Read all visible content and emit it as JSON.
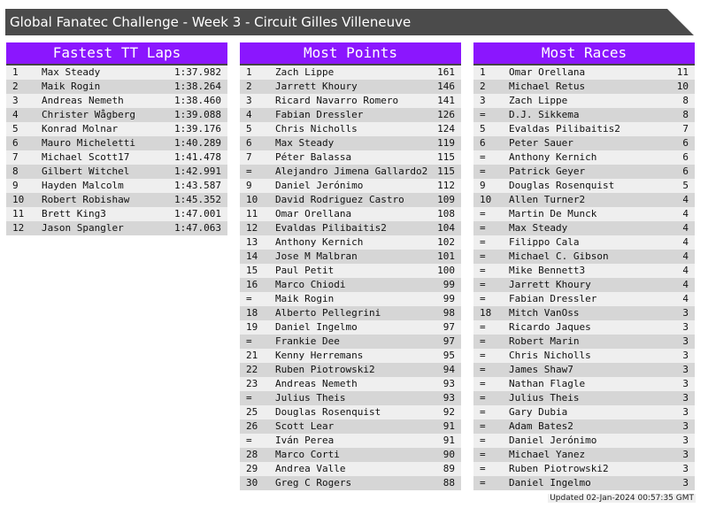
{
  "title": "Global Fanatec Challenge - Week 3 - Circuit Gilles Villeneuve",
  "colors": {
    "header": "#8b16fe",
    "titlebar": "#4b4b4b",
    "row_light": "#efefef",
    "row_dark": "#d6d6d6"
  },
  "panels": [
    {
      "title": "Fastest TT Laps",
      "rows": [
        [
          "1",
          "Max Steady",
          "1:37.982"
        ],
        [
          "2",
          "Maik Rogin",
          "1:38.264"
        ],
        [
          "3",
          "Andreas Nemeth",
          "1:38.460"
        ],
        [
          "4",
          "Christer Wågberg",
          "1:39.088"
        ],
        [
          "5",
          "Konrad Molnar",
          "1:39.176"
        ],
        [
          "6",
          "Mauro Micheletti",
          "1:40.289"
        ],
        [
          "7",
          "Michael Scott17",
          "1:41.478"
        ],
        [
          "8",
          "Gilbert Witchel",
          "1:42.991"
        ],
        [
          "9",
          "Hayden Malcolm",
          "1:43.587"
        ],
        [
          "10",
          "Robert Robishaw",
          "1:45.352"
        ],
        [
          "11",
          "Brett King3",
          "1:47.001"
        ],
        [
          "12",
          "Jason Spangler",
          "1:47.063"
        ]
      ]
    },
    {
      "title": "Most Points",
      "rows": [
        [
          "1",
          "Zach Lippe",
          "161"
        ],
        [
          "2",
          "Jarrett Khoury",
          "146"
        ],
        [
          "3",
          "Ricard Navarro Romero",
          "141"
        ],
        [
          "4",
          "Fabian Dressler",
          "126"
        ],
        [
          "5",
          "Chris Nicholls",
          "124"
        ],
        [
          "6",
          "Max Steady",
          "119"
        ],
        [
          "7",
          "Péter Balassa",
          "115"
        ],
        [
          "=",
          "Alejandro Jimena Gallardo2",
          "115"
        ],
        [
          "9",
          "Daniel Jerónimo",
          "112"
        ],
        [
          "10",
          "David Rodriguez Castro",
          "109"
        ],
        [
          "11",
          "Omar Orellana",
          "108"
        ],
        [
          "12",
          "Evaldas Pilibaitis2",
          "104"
        ],
        [
          "13",
          "Anthony Kernich",
          "102"
        ],
        [
          "14",
          "Jose M Malbran",
          "101"
        ],
        [
          "15",
          "Paul Petit",
          "100"
        ],
        [
          "16",
          "Marco Chiodi",
          "99"
        ],
        [
          "=",
          "Maik Rogin",
          "99"
        ],
        [
          "18",
          "Alberto Pellegrini",
          "98"
        ],
        [
          "19",
          "Daniel Ingelmo",
          "97"
        ],
        [
          "=",
          "Frankie Dee",
          "97"
        ],
        [
          "21",
          "Kenny Herremans",
          "95"
        ],
        [
          "22",
          "Ruben Piotrowski2",
          "94"
        ],
        [
          "23",
          "Andreas Nemeth",
          "93"
        ],
        [
          "=",
          "Julius Theis",
          "93"
        ],
        [
          "25",
          "Douglas Rosenquist",
          "92"
        ],
        [
          "26",
          "Scott Lear",
          "91"
        ],
        [
          "=",
          "Iván Perea",
          "91"
        ],
        [
          "28",
          "Marco Corti",
          "90"
        ],
        [
          "29",
          "Andrea Valle",
          "89"
        ],
        [
          "30",
          "Greg C Rogers",
          "88"
        ]
      ]
    },
    {
      "title": "Most Races",
      "rows": [
        [
          "1",
          "Omar Orellana",
          "11"
        ],
        [
          "2",
          "Michael Retus",
          "10"
        ],
        [
          "3",
          "Zach Lippe",
          "8"
        ],
        [
          "=",
          "D.J. Sikkema",
          "8"
        ],
        [
          "5",
          "Evaldas Pilibaitis2",
          "7"
        ],
        [
          "6",
          "Peter Sauer",
          "6"
        ],
        [
          "=",
          "Anthony Kernich",
          "6"
        ],
        [
          "=",
          "Patrick Geyer",
          "6"
        ],
        [
          "9",
          "Douglas Rosenquist",
          "5"
        ],
        [
          "10",
          "Allen Turner2",
          "4"
        ],
        [
          "=",
          "Martin De Munck",
          "4"
        ],
        [
          "=",
          "Max Steady",
          "4"
        ],
        [
          "=",
          "Filippo Cala",
          "4"
        ],
        [
          "=",
          "Michael C. Gibson",
          "4"
        ],
        [
          "=",
          "Mike Bennett3",
          "4"
        ],
        [
          "=",
          "Jarrett Khoury",
          "4"
        ],
        [
          "=",
          "Fabian Dressler",
          "4"
        ],
        [
          "18",
          "Mitch VanOss",
          "3"
        ],
        [
          "=",
          "Ricardo Jaques",
          "3"
        ],
        [
          "=",
          "Robert Marin",
          "3"
        ],
        [
          "=",
          "Chris Nicholls",
          "3"
        ],
        [
          "=",
          "James Shaw7",
          "3"
        ],
        [
          "=",
          "Nathan Flagle",
          "3"
        ],
        [
          "=",
          "Julius Theis",
          "3"
        ],
        [
          "=",
          "Gary Dubia",
          "3"
        ],
        [
          "=",
          "Adam Bates2",
          "3"
        ],
        [
          "=",
          "Daniel Jerónimo",
          "3"
        ],
        [
          "=",
          "Michael Yanez",
          "3"
        ],
        [
          "=",
          "Ruben Piotrowski2",
          "3"
        ],
        [
          "=",
          "Daniel Ingelmo",
          "3"
        ]
      ]
    }
  ],
  "updated": "Updated 02-Jan-2024 00:57:35 GMT"
}
